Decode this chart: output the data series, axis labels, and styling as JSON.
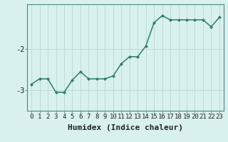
{
  "x": [
    0,
    1,
    2,
    3,
    4,
    5,
    6,
    7,
    8,
    9,
    10,
    11,
    12,
    13,
    14,
    15,
    16,
    17,
    18,
    19,
    20,
    21,
    22,
    23
  ],
  "y": [
    -2.85,
    -2.72,
    -2.72,
    -3.05,
    -3.05,
    -2.75,
    -2.55,
    -2.72,
    -2.72,
    -2.72,
    -2.65,
    -2.35,
    -2.18,
    -2.18,
    -1.92,
    -1.35,
    -1.18,
    -1.28,
    -1.28,
    -1.28,
    -1.28,
    -1.28,
    -1.45,
    -1.22
  ],
  "line_color": "#2d7d6e",
  "marker": "D",
  "marker_size": 2.0,
  "bg_color": "#d8f0ee",
  "grid_color": "#c0d8d4",
  "xlabel": "Humidex (Indice chaleur)",
  "xlim": [
    -0.5,
    23.5
  ],
  "ylim": [
    -3.5,
    -0.9
  ],
  "yticks": [
    -3,
    -2
  ],
  "xticks": [
    0,
    1,
    2,
    3,
    4,
    5,
    6,
    7,
    8,
    9,
    10,
    11,
    12,
    13,
    14,
    15,
    16,
    17,
    18,
    19,
    20,
    21,
    22,
    23
  ],
  "tick_labelsize": 6.5,
  "xlabel_fontsize": 8,
  "linewidth": 1.1
}
